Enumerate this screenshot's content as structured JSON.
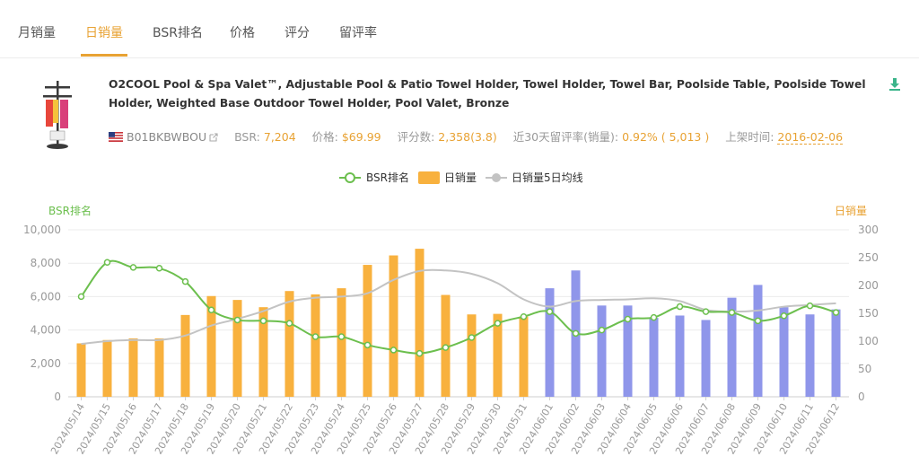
{
  "tabs": [
    {
      "label": "月销量",
      "active": false
    },
    {
      "label": "日销量",
      "active": true
    },
    {
      "label": "BSR排名",
      "active": false
    },
    {
      "label": "价格",
      "active": false
    },
    {
      "label": "评分",
      "active": false
    },
    {
      "label": "留评率",
      "active": false
    }
  ],
  "product": {
    "title": "O2COOL Pool & Spa Valet™, Adjustable Pool & Patio Towel Holder, Towel Holder, Towel Bar, Poolside Table, Poolside Towel Holder, Weighted Base Outdoor Towel Holder, Pool Valet, Bronze",
    "asin": "B01BKBWBOU",
    "flag": "us-flag-icon",
    "bsr_label": "BSR:",
    "bsr_value": "7,204",
    "price_label": "价格:",
    "price_value": "$69.99",
    "reviews_label": "评分数:",
    "reviews_value": "2,358(3.8)",
    "review_rate_label": "近30天留评率(销量):",
    "review_rate_value": "0.92% ( 5,013 )",
    "listed_label": "上架时间:",
    "listed_value": "2016-02-06"
  },
  "colors": {
    "accent": "#e8a233",
    "bsr_line": "#6cbf4e",
    "bar_orange": "#f8b13e",
    "bar_blue": "#8f96ea",
    "ma_line": "#c3c3c3"
  },
  "chart_data": {
    "type": "bar",
    "legend": [
      "BSR排名",
      "日销量",
      "日销量5日均线"
    ],
    "left_axis": {
      "title": "BSR排名",
      "min": 0,
      "max": 10000,
      "ticks": [
        "0",
        "2,000",
        "4,000",
        "6,000",
        "8,000",
        "10,000"
      ]
    },
    "right_axis": {
      "title": "日销量",
      "min": 0,
      "max": 300,
      "ticks": [
        "0",
        "50",
        "100",
        "150",
        "200",
        "250",
        "300"
      ]
    },
    "categories": [
      "2024/05/14",
      "2024/05/15",
      "2024/05/16",
      "2024/05/17",
      "2024/05/18",
      "2024/05/19",
      "2024/05/20",
      "2024/05/21",
      "2024/05/22",
      "2024/05/23",
      "2024/05/24",
      "2024/05/25",
      "2024/05/26",
      "2024/05/27",
      "2024/05/28",
      "2024/05/29",
      "2024/05/30",
      "2024/05/31",
      "2024/06/01",
      "2024/06/02",
      "2024/06/03",
      "2024/06/04",
      "2024/06/05",
      "2024/06/06",
      "2024/06/07",
      "2024/06/08",
      "2024/06/09",
      "2024/06/10",
      "2024/06/11",
      "2024/06/12"
    ],
    "daily_sales": [
      96,
      102,
      105,
      105,
      147,
      181,
      174,
      161,
      190,
      184,
      195,
      237,
      254,
      266,
      183,
      148,
      149,
      144,
      195,
      227,
      164,
      164,
      142,
      146,
      138,
      178,
      201,
      161,
      148,
      157
    ],
    "sales_estimated_from": "2024/06/01",
    "ma5_sales": [
      95,
      100,
      102,
      102,
      110,
      128,
      140,
      154,
      171,
      178,
      180,
      186,
      210,
      226,
      227,
      221,
      204,
      175,
      162,
      172,
      174,
      175,
      177,
      172,
      156,
      153,
      155,
      162,
      165,
      168
    ],
    "bsr_rank": [
      6000,
      8050,
      7750,
      7700,
      6900,
      5200,
      4600,
      4550,
      4400,
      3600,
      3600,
      3100,
      2800,
      2600,
      2950,
      3550,
      4400,
      4800,
      5100,
      3800,
      4000,
      4650,
      4750,
      5400,
      5100,
      5050,
      4550,
      4850,
      5450,
      5050
    ]
  }
}
